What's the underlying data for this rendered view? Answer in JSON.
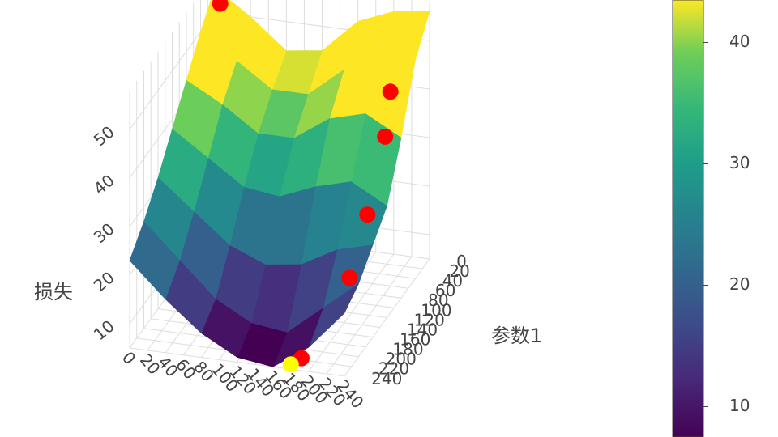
{
  "chart_data": {
    "type": "surface",
    "x": [
      0,
      40,
      80,
      120,
      160,
      200,
      240
    ],
    "y": [
      0,
      40,
      80,
      120,
      160,
      200,
      240
    ],
    "z": [
      [
        55,
        50,
        44,
        45,
        52,
        55,
        56
      ],
      [
        50,
        45,
        40,
        40,
        46,
        50,
        50
      ],
      [
        44,
        40,
        35,
        35,
        40,
        42,
        38
      ],
      [
        38,
        33,
        28,
        27,
        30,
        32,
        28
      ],
      [
        32,
        26,
        20,
        17,
        18,
        22,
        24
      ],
      [
        27,
        20,
        13,
        9,
        8,
        14,
        20
      ],
      [
        23,
        16,
        10,
        6,
        5,
        10,
        18
      ]
    ],
    "colorscale": "Viridis",
    "xlim": [
      0,
      240
    ],
    "ylim": [
      0,
      240
    ],
    "zlim": [
      5,
      58
    ],
    "xticks": [
      0,
      20,
      40,
      60,
      80,
      100,
      120,
      140,
      160,
      180,
      200,
      220,
      240
    ],
    "yticks": [
      0,
      20,
      40,
      60,
      80,
      100,
      120,
      140,
      160,
      180,
      200,
      220,
      240
    ],
    "zticks": [
      10,
      20,
      30,
      40,
      50
    ],
    "ylabel": "参数1",
    "zlabel": "损失",
    "points": {
      "color": "#ff0000",
      "x": [
        10,
        220,
        230,
        230,
        230,
        190
      ],
      "y": [
        10,
        60,
        100,
        150,
        200,
        235
      ],
      "z": [
        53,
        45,
        40,
        29,
        21,
        7
      ]
    },
    "best_point": {
      "color": "#ffff00",
      "x": 180,
      "y": 240,
      "z": 6
    },
    "colorbar": {
      "lim": [
        7.5,
        43.5
      ],
      "ticks": [
        10,
        20,
        30,
        40
      ]
    }
  }
}
